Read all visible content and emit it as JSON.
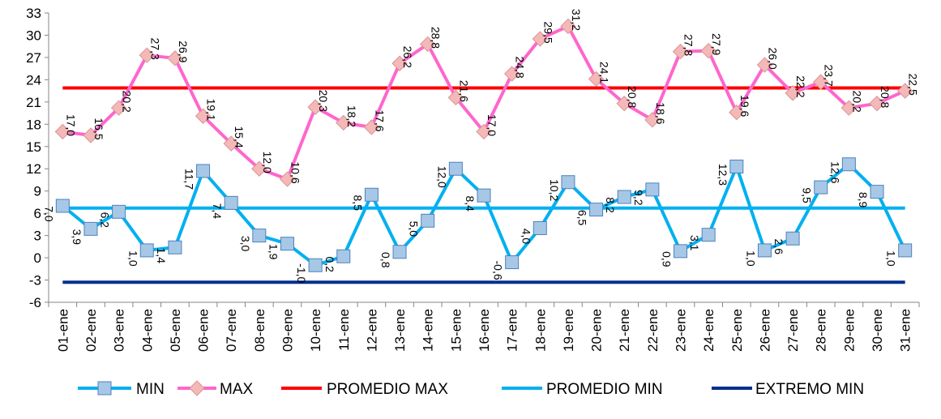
{
  "chart_data": {
    "type": "line",
    "categories": [
      "01-ene",
      "02-ene",
      "03-ene",
      "04-ene",
      "05-ene",
      "06-ene",
      "07-ene",
      "08-ene",
      "09-ene",
      "10-ene",
      "11-ene",
      "12-ene",
      "13-ene",
      "14-ene",
      "15-ene",
      "16-ene",
      "17-ene",
      "18-ene",
      "19-ene",
      "20-ene",
      "21-ene",
      "22-ene",
      "23-ene",
      "24-ene",
      "25-ene",
      "26-ene",
      "27-ene",
      "28-ene",
      "29-ene",
      "30-ene",
      "31-ene"
    ],
    "series": [
      {
        "name": "MIN",
        "color": "#00b0f0",
        "marker": "square",
        "marker_color": "#a6c8e6",
        "values": [
          7.0,
          3.9,
          6.2,
          1.0,
          1.4,
          11.7,
          7.4,
          3.0,
          1.9,
          -1.0,
          0.2,
          8.5,
          0.8,
          5.0,
          12.0,
          8.4,
          -0.6,
          4.0,
          10.2,
          6.5,
          8.2,
          9.2,
          0.9,
          3.1,
          12.3,
          1.0,
          2.6,
          9.5,
          12.6,
          8.9,
          1.0
        ],
        "labels": [
          "7,0",
          "3,9",
          "6,2",
          "1,0",
          "1,4",
          "11,7",
          "7,4",
          "3,0",
          "1,9",
          "-1,0",
          "0,2",
          "8,5",
          "0,8",
          "5,0",
          "12,0",
          "8,4",
          "-0,6",
          "4,0",
          "10,2",
          "6,5",
          "8,2",
          "9,2",
          "0,9",
          "3,1",
          "12,3",
          "1,0",
          "2,6",
          "9,5",
          "12,6",
          "8,9",
          "1,0"
        ]
      },
      {
        "name": "MAX",
        "color": "#ff66cc",
        "marker": "diamond",
        "marker_color": "#f5b8b8",
        "values": [
          17.0,
          16.5,
          20.2,
          27.3,
          26.9,
          19.1,
          15.4,
          12.0,
          10.6,
          20.3,
          18.2,
          17.6,
          26.2,
          28.8,
          21.6,
          17.0,
          24.8,
          29.5,
          31.2,
          24.1,
          20.8,
          18.6,
          27.8,
          27.9,
          19.6,
          26.0,
          22.2,
          23.7,
          20.2,
          20.8,
          22.5
        ],
        "labels": [
          "17,0",
          "16,5",
          "20,2",
          "27,3",
          "26,9",
          "19,1",
          "15,4",
          "12,0",
          "10,6",
          "20,3",
          "18,2",
          "17,6",
          "26,2",
          "28,8",
          "21,6",
          "17,0",
          "24,8",
          "29,5",
          "31,2",
          "24,1",
          "20,8",
          "18,6",
          "27,8",
          "27,9",
          "19,6",
          "26,0",
          "22,2",
          "23,7",
          "20,2",
          "20,8",
          "22,5"
        ]
      },
      {
        "name": "PROMEDIO MAX",
        "color": "#ff0000",
        "constant": 22.9
      },
      {
        "name": "PROMEDIO MIN",
        "color": "#00b0f0",
        "constant": 6.7
      },
      {
        "name": "EXTREMO MIN",
        "color": "#002f8f",
        "constant": -3.3
      }
    ],
    "ylim": [
      -6,
      33
    ],
    "yticks": [
      -6,
      -3,
      0,
      3,
      6,
      9,
      12,
      15,
      18,
      21,
      24,
      27,
      30,
      33
    ],
    "ytick_labels": [
      "-6",
      "-3",
      "0",
      "3",
      "6",
      "9",
      "12",
      "15",
      "18",
      "21",
      "24",
      "27",
      "30",
      "33"
    ],
    "grid": false,
    "legend": "bottom",
    "title": "",
    "xlabel": "",
    "ylabel": ""
  }
}
